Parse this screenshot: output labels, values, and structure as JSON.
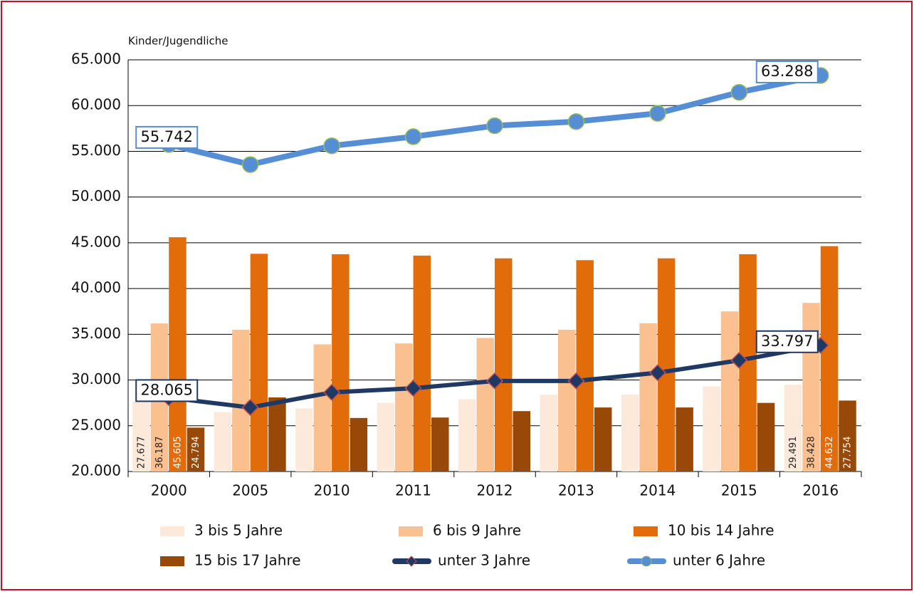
{
  "chart_data": {
    "type": "bar_line",
    "y_axis_label": "Kinder/Jugendliche",
    "categories": [
      "2000",
      "2005",
      "2010",
      "2011",
      "2012",
      "2013",
      "2014",
      "2015",
      "2016"
    ],
    "ylim": [
      20000,
      65000
    ],
    "yticks": [
      {
        "value": 20000,
        "label": "20.000"
      },
      {
        "value": 25000,
        "label": "25.000"
      },
      {
        "value": 30000,
        "label": "30.000"
      },
      {
        "value": 35000,
        "label": "35.000"
      },
      {
        "value": 40000,
        "label": "40.000"
      },
      {
        "value": 45000,
        "label": "45.000"
      },
      {
        "value": 50000,
        "label": "50.000"
      },
      {
        "value": 55000,
        "label": "55.000"
      },
      {
        "value": 60000,
        "label": "60.000"
      },
      {
        "value": 65000,
        "label": "65.000"
      }
    ],
    "grid": true,
    "legend": "bottom",
    "series": [
      {
        "name": "3 bis 5 Jahre",
        "kind": "bar",
        "color": "#fde9d9",
        "label_color": "#222222",
        "values": [
          27677,
          26500,
          26900,
          27500,
          27900,
          28400,
          28400,
          29300,
          29491
        ],
        "value_labels": [
          "27.677",
          null,
          null,
          null,
          null,
          null,
          null,
          null,
          "29.491"
        ]
      },
      {
        "name": "6 bis 9 Jahre",
        "kind": "bar",
        "color": "#fac090",
        "label_color": "#222222",
        "values": [
          36187,
          35500,
          33900,
          34000,
          34600,
          35500,
          36200,
          37500,
          38428
        ],
        "value_labels": [
          "36.187",
          null,
          null,
          null,
          null,
          null,
          null,
          null,
          "38.428"
        ]
      },
      {
        "name": "10 bis 14 Jahre",
        "kind": "bar",
        "color": "#e36c0a",
        "label_color": "#ffffff",
        "values": [
          45605,
          43800,
          43750,
          43600,
          43300,
          43100,
          43300,
          43750,
          44632
        ],
        "value_labels": [
          "45.605",
          null,
          null,
          null,
          null,
          null,
          null,
          null,
          "44.632"
        ]
      },
      {
        "name": "15 bis 17 Jahre",
        "kind": "bar",
        "color": "#984807",
        "label_color": "#ffffff",
        "values": [
          24794,
          28100,
          25850,
          25900,
          26600,
          27000,
          27000,
          27500,
          27754
        ],
        "value_labels": [
          "24.794",
          null,
          null,
          null,
          null,
          null,
          null,
          null,
          "27.754"
        ]
      },
      {
        "name": "unter 3 Jahre",
        "kind": "line",
        "marker": "diamond",
        "color": "#1f3864",
        "marker_stroke": "#c0504d",
        "box_color": "#1f3864",
        "values": [
          28065,
          27000,
          28650,
          29100,
          29900,
          29900,
          30800,
          32150,
          33797
        ],
        "value_labels": [
          "28.065",
          null,
          null,
          null,
          null,
          null,
          null,
          null,
          "33.797"
        ]
      },
      {
        "name": "unter 6 Jahre",
        "kind": "line",
        "marker": "circle",
        "color": "#558ed5",
        "marker_stroke": "#9bbb59",
        "box_color": "#558ed5",
        "values": [
          55742,
          53550,
          55600,
          56600,
          57800,
          58250,
          59150,
          61450,
          63288
        ],
        "value_labels": [
          "55.742",
          null,
          null,
          null,
          null,
          null,
          null,
          null,
          "63.288"
        ]
      }
    ]
  }
}
